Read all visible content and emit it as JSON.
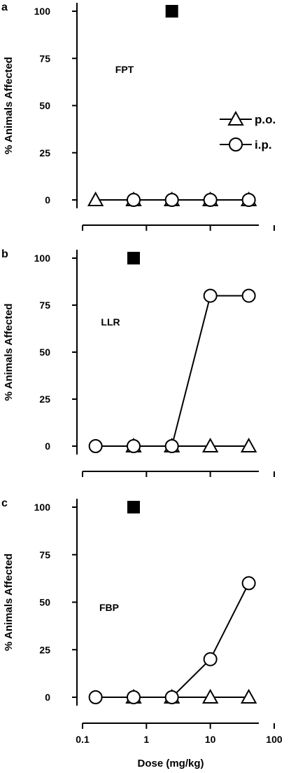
{
  "chart_data": [
    {
      "type": "line",
      "panel": "a",
      "label": "FPT",
      "ylabel": "% Animals Affected",
      "ylim": [
        0,
        100
      ],
      "yticks": [
        0,
        25,
        50,
        75,
        100
      ],
      "xscale": "log",
      "series": [
        {
          "name": "p.o.",
          "marker": "triangle",
          "x": [
            0.16,
            0.63,
            2.5,
            10,
            40
          ],
          "y": [
            0,
            0,
            0,
            0,
            0
          ]
        },
        {
          "name": "i.p.",
          "marker": "circle",
          "x": [
            0.63,
            2.5,
            10,
            40
          ],
          "y": [
            0,
            0,
            0,
            0
          ]
        }
      ],
      "square": {
        "x": 2.5,
        "y": 100
      },
      "legend": {
        "position": "right",
        "entries": [
          "p.o.",
          "i.p."
        ]
      }
    },
    {
      "type": "line",
      "panel": "b",
      "label": "LLR",
      "ylabel": "% Animals Affected",
      "ylim": [
        0,
        100
      ],
      "yticks": [
        0,
        25,
        50,
        75,
        100
      ],
      "xscale": "log",
      "series": [
        {
          "name": "p.o.",
          "marker": "triangle",
          "x": [
            0.63,
            2.5,
            10,
            40
          ],
          "y": [
            0,
            0,
            0,
            0
          ]
        },
        {
          "name": "i.p.",
          "marker": "circle",
          "x": [
            0.16,
            0.63,
            2.5,
            10,
            40
          ],
          "y": [
            0,
            0,
            0,
            80,
            80
          ]
        }
      ],
      "square": {
        "x": 0.63,
        "y": 100
      }
    },
    {
      "type": "line",
      "panel": "c",
      "label": "FBP",
      "ylabel": "% Animals Affected",
      "ylim": [
        0,
        100
      ],
      "yticks": [
        0,
        25,
        50,
        75,
        100
      ],
      "xscale": "log",
      "xlim": [
        0.1,
        100
      ],
      "xticks": [
        0.1,
        1,
        10,
        100
      ],
      "xtick_labels": [
        "0.1",
        "1",
        "10",
        "100"
      ],
      "xlabel": "Dose (mg/kg)",
      "series": [
        {
          "name": "p.o.",
          "marker": "triangle",
          "x": [
            0.63,
            2.5,
            10,
            40
          ],
          "y": [
            0,
            0,
            0,
            0
          ]
        },
        {
          "name": "i.p.",
          "marker": "circle",
          "x": [
            0.16,
            0.63,
            2.5,
            10,
            40
          ],
          "y": [
            0,
            0,
            0,
            20,
            60
          ]
        }
      ],
      "square": {
        "x": 0.63,
        "y": 100
      }
    }
  ]
}
